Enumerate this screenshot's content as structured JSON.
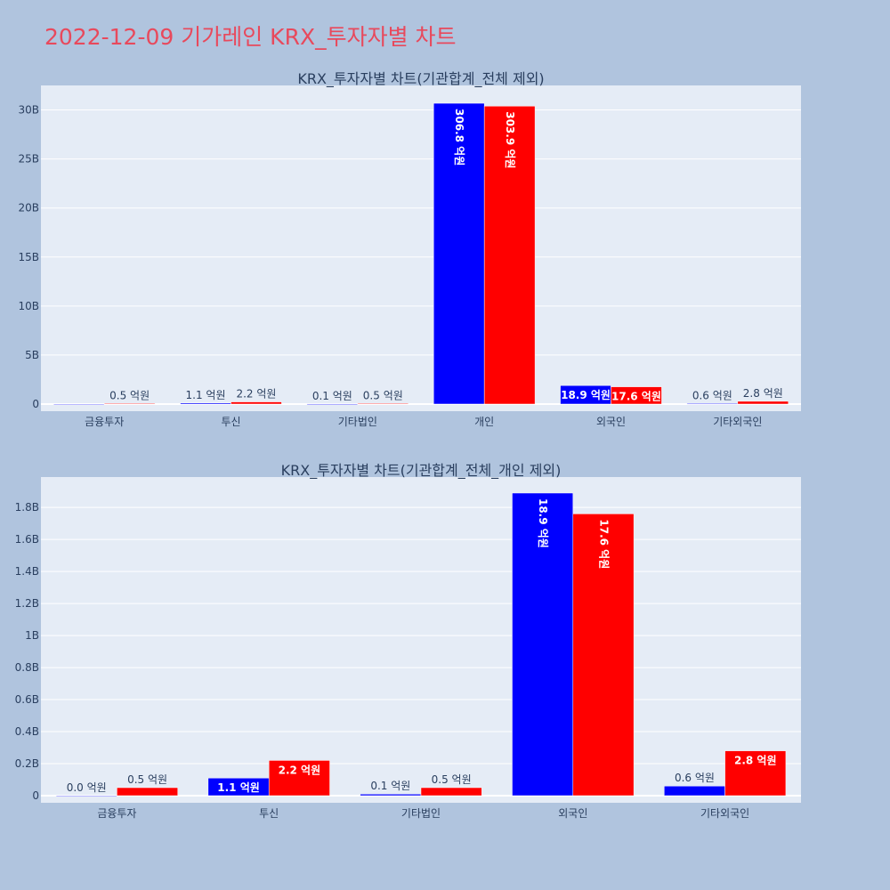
{
  "page": {
    "title": "2022-12-09 기가레인 KRX_투자자별 차트"
  },
  "colors": {
    "series_a": "#0000ff",
    "series_b": "#ff0000",
    "plot_bg": "#e5ecf6",
    "page_bg": "#b0c4de",
    "title": "#e8495c"
  },
  "chart_data": [
    {
      "type": "bar",
      "title": "KRX_투자자별 차트(기관합계_전체 제외)",
      "categories": [
        "금융투자",
        "투신",
        "기타법인",
        "개인",
        "외국인",
        "기타외국인"
      ],
      "ylim": [
        0,
        32500000000
      ],
      "yticks": [
        0,
        5000000000,
        10000000000,
        15000000000,
        20000000000,
        25000000000,
        30000000000
      ],
      "ytick_labels": [
        "0",
        "5B",
        "10B",
        "15B",
        "20B",
        "25B",
        "30B"
      ],
      "grid": true,
      "series": [
        {
          "color": "#0000ff",
          "values": [
            0,
            110000000,
            10000000,
            30680000000,
            1890000000,
            60000000
          ],
          "labels": [
            "",
            "1.1 억원",
            "0.1 억원",
            "306.8 억원",
            "18.9 억원",
            "0.6 억원"
          ]
        },
        {
          "color": "#ff0000",
          "values": [
            50000000,
            220000000,
            50000000,
            30390000000,
            1760000000,
            280000000
          ],
          "labels": [
            "0.5 억원",
            "2.2 억원",
            "0.5 억원",
            "303.9 억원",
            "17.6 억원",
            "2.8 억원"
          ]
        }
      ]
    },
    {
      "type": "bar",
      "title": "KRX_투자자별 차트(기관합계_전체_개인 제외)",
      "categories": [
        "금융투자",
        "투신",
        "기타법인",
        "외국인",
        "기타외국인"
      ],
      "ylim": [
        0,
        1990000000
      ],
      "yticks": [
        0,
        200000000,
        400000000,
        600000000,
        800000000,
        1000000000,
        1200000000,
        1400000000,
        1600000000,
        1800000000
      ],
      "ytick_labels": [
        "0",
        "0.2B",
        "0.4B",
        "0.6B",
        "0.8B",
        "1B",
        "1.2B",
        "1.4B",
        "1.6B",
        "1.8B"
      ],
      "grid": true,
      "series": [
        {
          "color": "#0000ff",
          "values": [
            0,
            110000000,
            10000000,
            1890000000,
            60000000
          ],
          "labels": [
            "0.0 억원",
            "1.1 억원",
            "0.1 억원",
            "18.9 억원",
            "0.6 억원"
          ]
        },
        {
          "color": "#ff0000",
          "values": [
            50000000,
            220000000,
            50000000,
            1760000000,
            280000000
          ],
          "labels": [
            "0.5 억원",
            "2.2 억원",
            "0.5 억원",
            "17.6 억원",
            "2.8 억원"
          ]
        }
      ]
    }
  ]
}
